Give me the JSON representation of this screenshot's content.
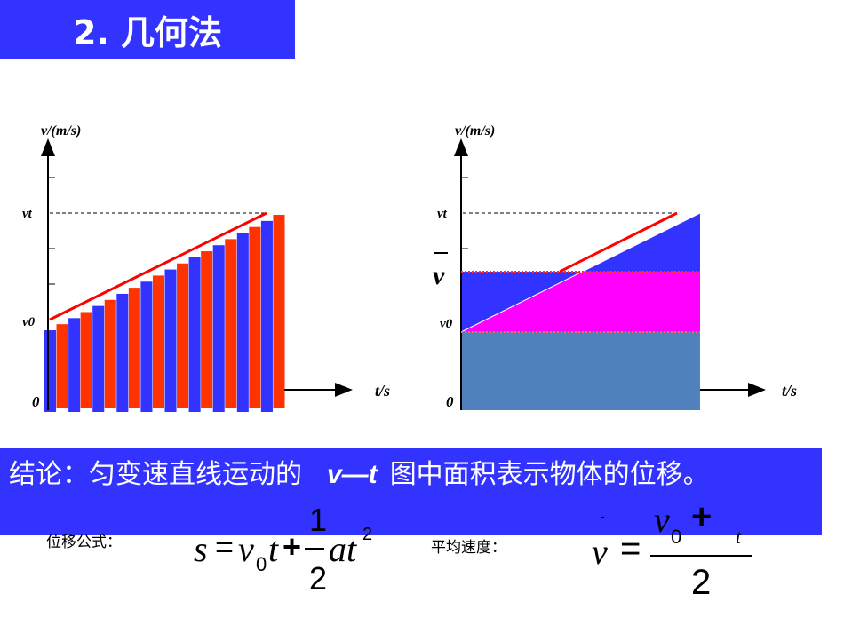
{
  "title": "2. 几何法",
  "colors": {
    "accent_blue": "#3333ff",
    "bar_red": "#ff3300",
    "magenta": "#ff00ff",
    "steel_blue": "#4f81bd",
    "line_red": "#ff0000"
  },
  "left_chart": {
    "y_label": "v/(m/s)",
    "x_label": "t/s",
    "vt": "vt",
    "v0": "v0",
    "origin": "0",
    "bar_count": 20
  },
  "right_chart": {
    "y_label": "v/(m/s)",
    "x_label": "t/s",
    "vt": "vt",
    "v0": "v0",
    "vbar": "v",
    "origin": "0"
  },
  "conclusion": {
    "prefix": "结论：匀变速直线运动的",
    "vt": "v—t",
    "suffix": "图中面积表示物体的位移。"
  },
  "formula1": {
    "label": "位移公式：",
    "lhs": "s",
    "eq": "=",
    "v": "v",
    "sub0": "0",
    "t": "t",
    "plus": "+",
    "num": "1",
    "den": "2",
    "at": "at",
    "sup": "2"
  },
  "formula2": {
    "label": "平均速度：",
    "lhs": "v",
    "eq": "=",
    "v0": "v",
    "sub0": "0",
    "plus": "+",
    "vt": "v",
    "subt": "t",
    "den": "2"
  }
}
